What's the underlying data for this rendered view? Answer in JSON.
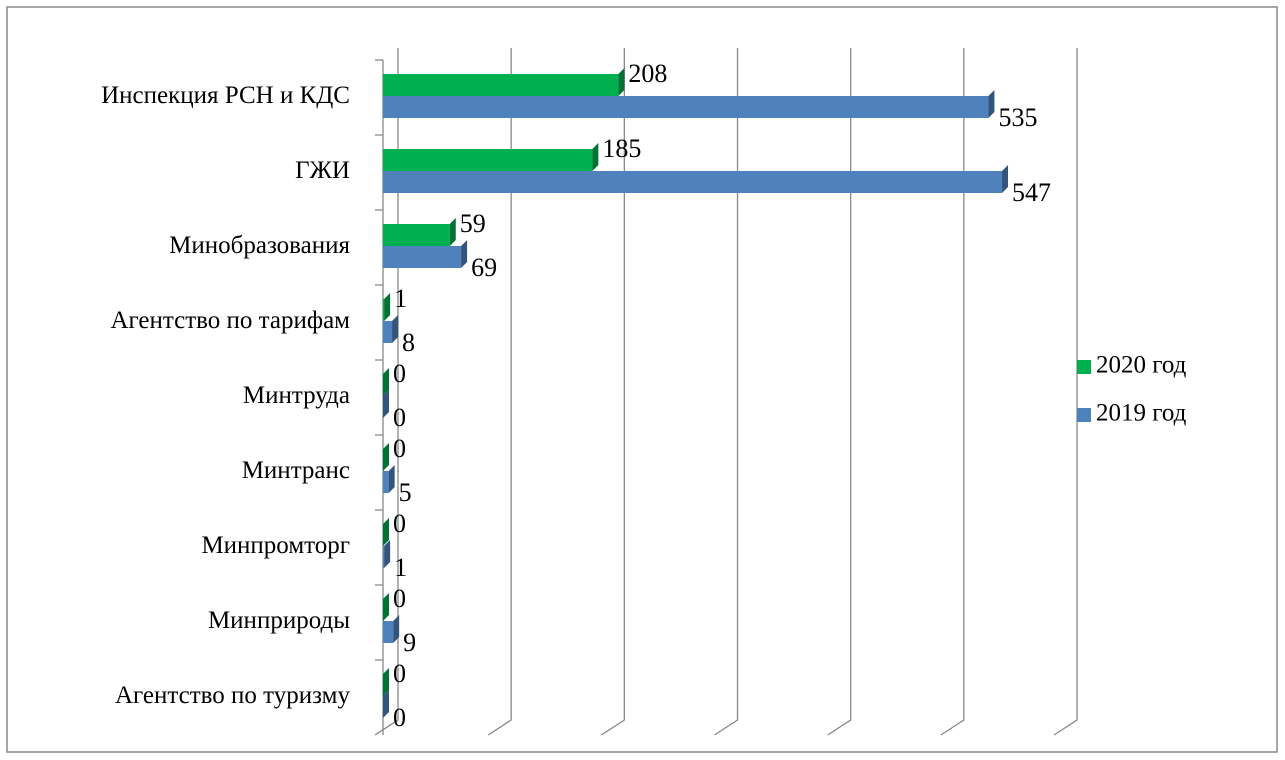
{
  "chart_data": {
    "type": "bar",
    "orientation": "horizontal",
    "categories": [
      "Инспекция РСН и КДС",
      "ГЖИ",
      "Минобразования",
      "Агентство по тарифам",
      "Минтруда",
      "Минтранс",
      "Минпромторг",
      "Минприроды",
      "Агентство по туризму"
    ],
    "series": [
      {
        "name": "2020 год",
        "color": "#00b050",
        "values": [
          208,
          185,
          59,
          1,
          0,
          0,
          0,
          0,
          0
        ]
      },
      {
        "name": "2019 год",
        "color": "#4f81bd",
        "values": [
          535,
          547,
          69,
          8,
          0,
          5,
          1,
          9,
          0
        ]
      }
    ],
    "xlim": [
      0,
      600
    ],
    "xticks": [
      0,
      100,
      200,
      300,
      400,
      500,
      600
    ],
    "grid": true,
    "legend": "right"
  }
}
